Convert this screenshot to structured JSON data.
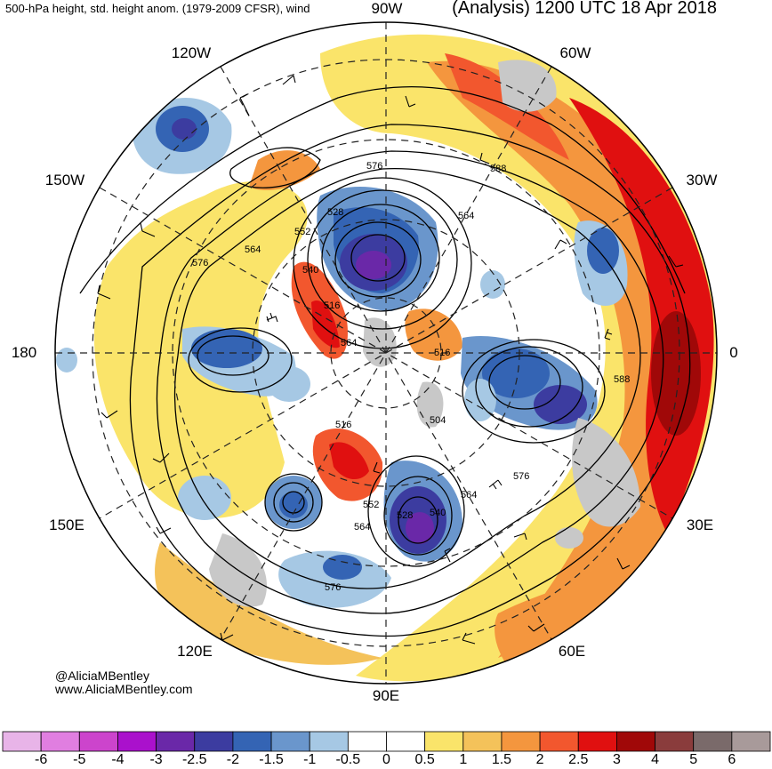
{
  "header": {
    "title_left": "500-hPa height, std. height anom. (1979-2009 CFSR), wind",
    "title_right": "(Analysis) 1200 UTC 18 Apr 2018"
  },
  "longitude_labels": {
    "lon_90w": "90W",
    "lon_120w": "120W",
    "lon_60w": "60W",
    "lon_150w": "150W",
    "lon_30w": "30W",
    "lon_180": "180",
    "lon_0": "0",
    "lon_150e": "150E",
    "lon_30e": "30E",
    "lon_120e": "120E",
    "lon_60e": "60E",
    "lon_90e": "90E"
  },
  "contour_labels": [
    "576",
    "588",
    "528",
    "564",
    "552",
    "564",
    "540",
    "516",
    "564",
    "576",
    "516",
    "588",
    "504",
    "516",
    "564",
    "576",
    "552",
    "528",
    "540",
    "564",
    "576"
  ],
  "credits": {
    "handle": "@AliciaMBentley",
    "website": "www.AliciaMBentley.com"
  },
  "colorbar": {
    "colors": [
      "#e8b4e8",
      "#e07ee0",
      "#cc44cc",
      "#aa11cc",
      "#6a28a8",
      "#3c3ca0",
      "#3464b4",
      "#6a96cc",
      "#a6c8e4",
      "#ffffff",
      "#ffffff",
      "#fae46a",
      "#f4c25a",
      "#f4963e",
      "#f2572e",
      "#e01010",
      "#a00808",
      "#8a3c3c",
      "#7a6a6a",
      "#a89a9a"
    ],
    "ticks": [
      "-6",
      "-5",
      "-4",
      "-3",
      "-2.5",
      "-2",
      "-1.5",
      "-1",
      "-0.5",
      "0",
      "0.5",
      "1",
      "1.5",
      "2",
      "2.5",
      "3",
      "4",
      "5",
      "6"
    ]
  },
  "palette": {
    "land_gray": "#c8c8c8",
    "contour": "#000000",
    "grid": "#222222"
  }
}
